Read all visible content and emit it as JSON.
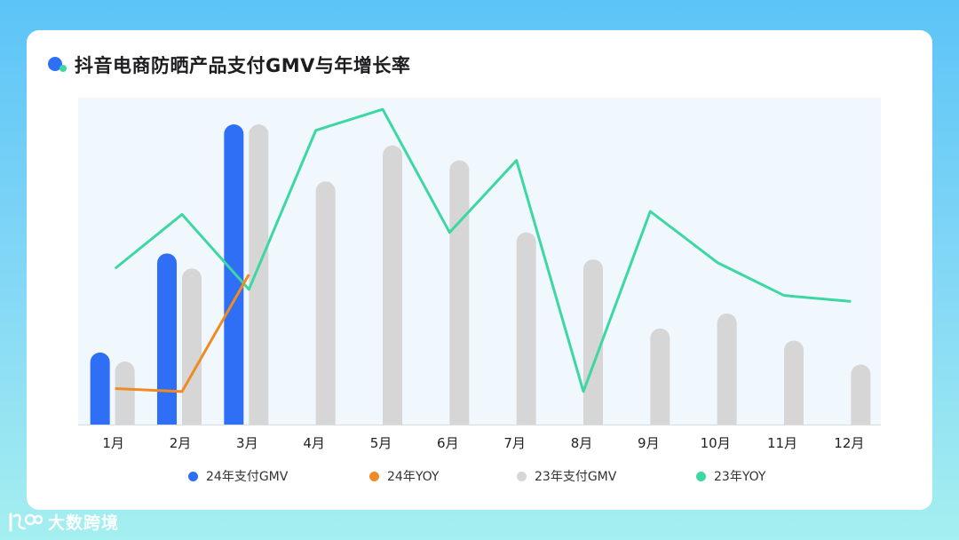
{
  "title": "抖音电商防晒产品支付GMV与年增长率",
  "brand": {
    "name": "大数跨境",
    "icon": "brand-logo-icon"
  },
  "colors": {
    "gmv24": "#2f6ff5",
    "yoy24": "#f08a24",
    "gmv23": "#d6d6d6",
    "yoy23": "#3dd8a2",
    "plot_bg": "#f1f8fd"
  },
  "chart_data": {
    "type": "bar",
    "title": "抖音电商防晒产品支付GMV与年增长率",
    "categories": [
      "1月",
      "2月",
      "3月",
      "4月",
      "5月",
      "6月",
      "7月",
      "8月",
      "9月",
      "10月",
      "11月",
      "12月"
    ],
    "legend_position": "bottom",
    "grid": false,
    "series": [
      {
        "name": "24年支付GMV",
        "kind": "bar",
        "values": [
          24,
          57,
          100,
          null,
          null,
          null,
          null,
          null,
          null,
          null,
          null,
          null
        ]
      },
      {
        "name": "24年YOY",
        "kind": "line",
        "values": [
          12,
          11,
          50,
          null,
          null,
          null,
          null,
          null,
          null,
          null,
          null,
          null
        ]
      },
      {
        "name": "23年支付GMV",
        "kind": "bar",
        "values": [
          21,
          52,
          100,
          81,
          93,
          88,
          64,
          55,
          32,
          37,
          28,
          20
        ]
      },
      {
        "name": "23年YOY",
        "kind": "line",
        "values": [
          52,
          70,
          45,
          98,
          105,
          64,
          88,
          11,
          71,
          54,
          43,
          41
        ]
      }
    ],
    "ylim": [
      0,
      110
    ]
  }
}
